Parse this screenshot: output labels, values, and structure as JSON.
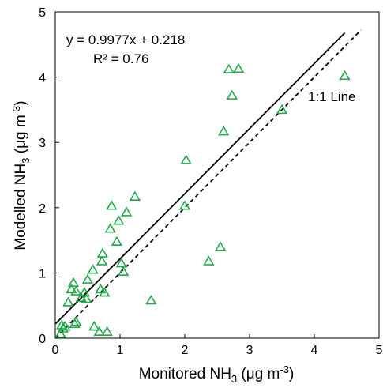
{
  "chart_data": {
    "type": "scatter",
    "xlim": [
      0,
      5
    ],
    "ylim": [
      0,
      5
    ],
    "x_ticks": [
      "0",
      "1",
      "2",
      "3",
      "4",
      "5"
    ],
    "y_ticks": [
      "0",
      "1",
      "2",
      "3",
      "4",
      "5"
    ],
    "xlabel": {
      "main": "Monitored NH",
      "sub": "3",
      "unit_pre": " (μg m",
      "sup": "-3",
      "unit_post": ")"
    },
    "ylabel": {
      "main": "Modelled NH",
      "sub": "3",
      "unit_pre": " (μg m",
      "sup": "-3",
      "unit_post": ")"
    },
    "grid": false,
    "marker": "open-triangle",
    "marker_color": "#22a84a",
    "points": [
      [
        0.08,
        0.07
      ],
      [
        0.1,
        0.2
      ],
      [
        0.12,
        0.15
      ],
      [
        0.15,
        0.18
      ],
      [
        0.2,
        0.55
      ],
      [
        0.25,
        0.75
      ],
      [
        0.28,
        0.85
      ],
      [
        0.3,
        0.22
      ],
      [
        0.32,
        0.72
      ],
      [
        0.32,
        0.25
      ],
      [
        0.4,
        0.62
      ],
      [
        0.45,
        0.7
      ],
      [
        0.48,
        0.6
      ],
      [
        0.5,
        0.9
      ],
      [
        0.58,
        1.05
      ],
      [
        0.6,
        0.18
      ],
      [
        0.68,
        0.1
      ],
      [
        0.7,
        0.75
      ],
      [
        0.72,
        1.18
      ],
      [
        0.73,
        1.3
      ],
      [
        0.76,
        0.7
      ],
      [
        0.8,
        0.1
      ],
      [
        0.85,
        1.68
      ],
      [
        0.87,
        2.03
      ],
      [
        0.95,
        1.48
      ],
      [
        0.98,
        1.8
      ],
      [
        1.02,
        1.15
      ],
      [
        1.05,
        1.02
      ],
      [
        1.1,
        1.93
      ],
      [
        1.23,
        2.17
      ],
      [
        1.48,
        0.58
      ],
      [
        2.0,
        2.03
      ],
      [
        2.02,
        2.73
      ],
      [
        2.37,
        1.18
      ],
      [
        2.55,
        1.4
      ],
      [
        2.6,
        3.17
      ],
      [
        2.68,
        4.12
      ],
      [
        2.73,
        3.72
      ],
      [
        2.83,
        4.13
      ],
      [
        3.5,
        3.5
      ],
      [
        4.47,
        4.02
      ]
    ],
    "fit_line": {
      "slope": 0.9977,
      "intercept": 0.218,
      "x_range": [
        0,
        4.47
      ],
      "color": "#000000",
      "style": "solid"
    },
    "one_to_one_line": {
      "x_range": [
        0,
        4.72
      ],
      "color": "#000000",
      "style": "dashed"
    },
    "annotations": {
      "equation": "y = 0.9977x + 0.218",
      "r2": "R² = 0.76",
      "one_to_one_label": "1:1 Line"
    }
  }
}
